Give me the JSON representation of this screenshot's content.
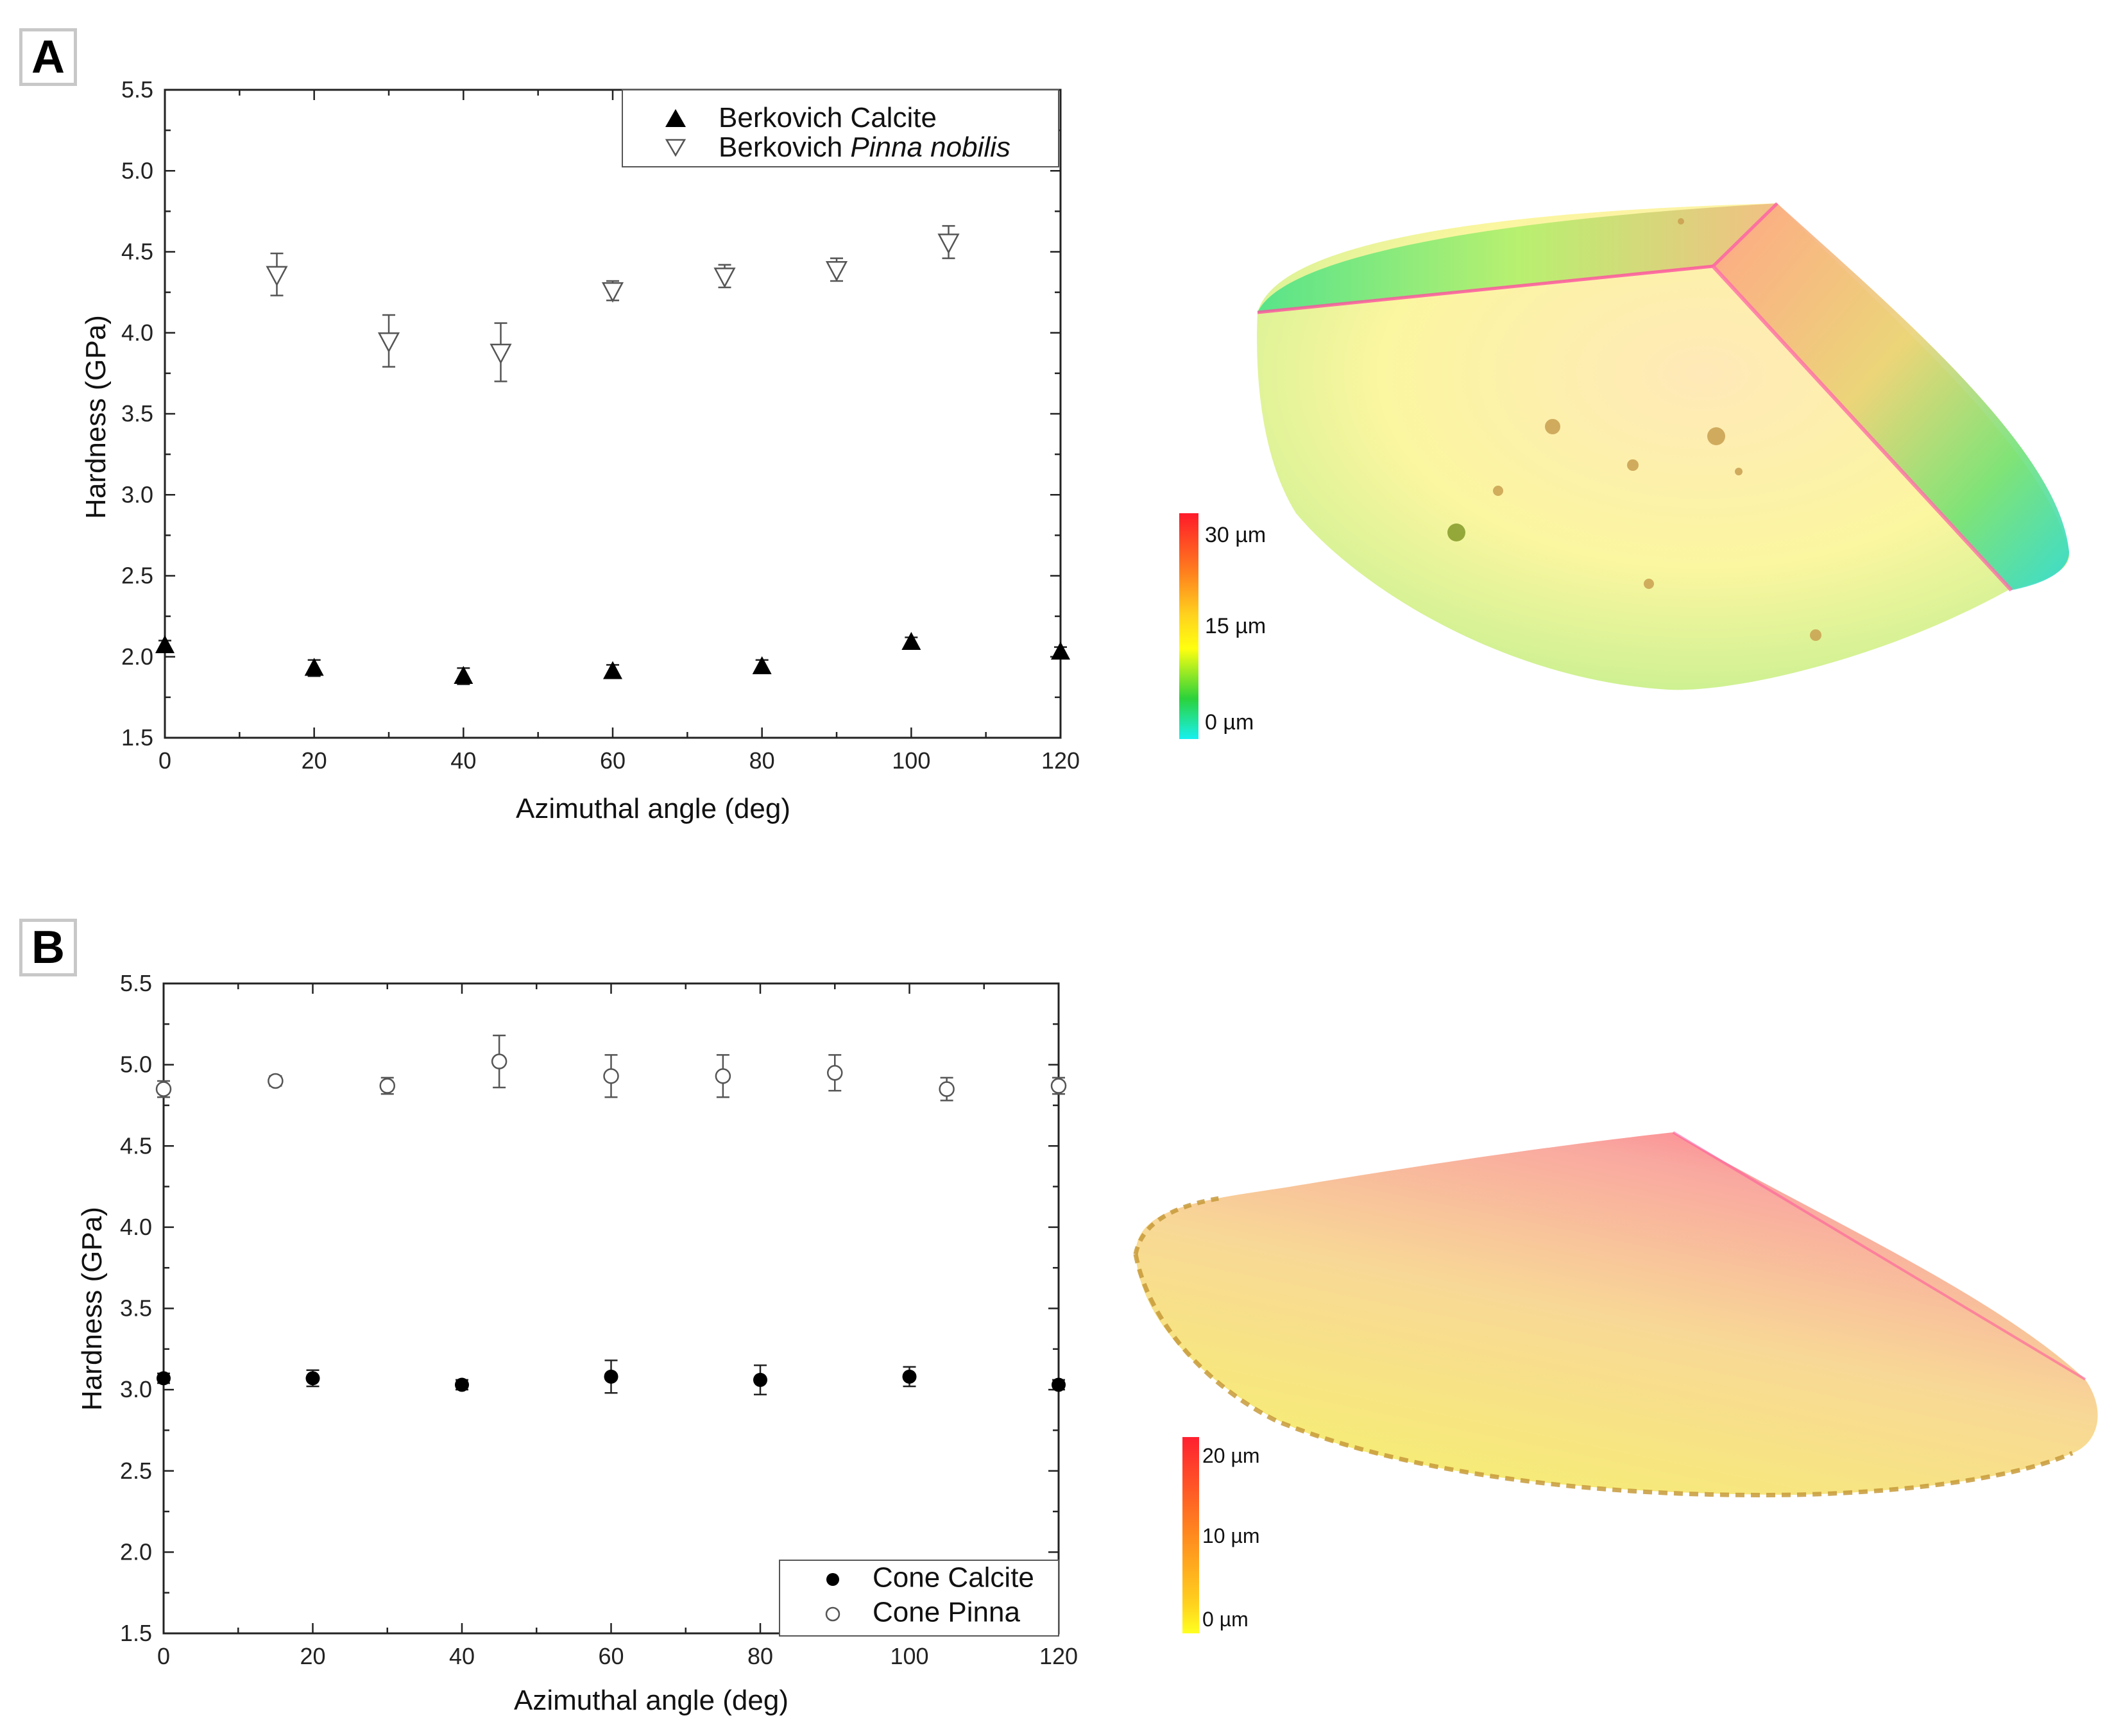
{
  "panels": {
    "a_label": "A",
    "b_label": "B"
  },
  "chart_data": [
    {
      "type": "scatter",
      "panel": "A",
      "xlabel": "Azimuthal angle (deg)",
      "ylabel": "Hardness (GPa)",
      "xlim": [
        0,
        120
      ],
      "ylim": [
        1.5,
        5.5
      ],
      "xticks": [
        "0",
        "20",
        "40",
        "60",
        "80",
        "100",
        "120"
      ],
      "yticks": [
        "1.5",
        "2.0",
        "2.5",
        "3.0",
        "3.5",
        "4.0",
        "4.5",
        "5.0",
        "5.5"
      ],
      "legend_position": "top-right",
      "series": [
        {
          "name": "Berkovich Calcite",
          "name_parts": [
            "Berkovich ",
            "Calcite"
          ],
          "marker": "triangle-up-filled",
          "points": [
            {
              "x": 0,
              "y": 2.07,
              "err": 0.03
            },
            {
              "x": 20,
              "y": 1.93,
              "err": 0.05
            },
            {
              "x": 40,
              "y": 1.88,
              "err": 0.05
            },
            {
              "x": 60,
              "y": 1.91,
              "err": 0.04
            },
            {
              "x": 80,
              "y": 1.94,
              "err": 0.04
            },
            {
              "x": 100,
              "y": 2.09,
              "err": 0.03
            },
            {
              "x": 120,
              "y": 2.03,
              "err": 0.03
            }
          ]
        },
        {
          "name": "Berkovich Pinna nobilis",
          "name_parts": [
            "Berkovich ",
            "Pinna nobilis"
          ],
          "marker": "triangle-down-open",
          "points": [
            {
              "x": 15,
              "y": 4.36,
              "err": 0.13
            },
            {
              "x": 30,
              "y": 3.95,
              "err": 0.16
            },
            {
              "x": 45,
              "y": 3.88,
              "err": 0.18
            },
            {
              "x": 60,
              "y": 4.26,
              "err": 0.06
            },
            {
              "x": 75,
              "y": 4.35,
              "err": 0.07
            },
            {
              "x": 90,
              "y": 4.39,
              "err": 0.07
            },
            {
              "x": 105,
              "y": 4.56,
              "err": 0.1
            }
          ]
        }
      ],
      "colorbar": {
        "labels": [
          "30 µm",
          "15 µm",
          "0 µm"
        ],
        "colors": [
          "#ff1a2a",
          "#ff7b1e",
          "#ffd21e",
          "#ffff10",
          "#2bd23a",
          "#18f0f0"
        ]
      }
    },
    {
      "type": "scatter",
      "panel": "B",
      "xlabel": "Azimuthal angle (deg)",
      "ylabel": "Hardness (GPa)",
      "xlim": [
        0,
        120
      ],
      "ylim": [
        1.5,
        5.5
      ],
      "xticks": [
        "0",
        "20",
        "40",
        "60",
        "80",
        "100",
        "120"
      ],
      "yticks": [
        "1.5",
        "2.0",
        "2.5",
        "3.0",
        "3.5",
        "4.0",
        "4.5",
        "5.0",
        "5.5"
      ],
      "legend_position": "bottom-right",
      "series": [
        {
          "name": "Cone Calcite",
          "marker": "circle-filled",
          "points": [
            {
              "x": 0,
              "y": 3.07,
              "err": 0.03
            },
            {
              "x": 20,
              "y": 3.07,
              "err": 0.05
            },
            {
              "x": 40,
              "y": 3.03,
              "err": 0.03
            },
            {
              "x": 60,
              "y": 3.08,
              "err": 0.1
            },
            {
              "x": 80,
              "y": 3.06,
              "err": 0.09
            },
            {
              "x": 100,
              "y": 3.08,
              "err": 0.06
            },
            {
              "x": 120,
              "y": 3.03,
              "err": 0.03
            }
          ]
        },
        {
          "name": "Cone Pinna",
          "marker": "circle-open",
          "points": [
            {
              "x": 0,
              "y": 4.85,
              "err": 0.05
            },
            {
              "x": 15,
              "y": 4.9,
              "err": 0.03
            },
            {
              "x": 30,
              "y": 4.87,
              "err": 0.05
            },
            {
              "x": 45,
              "y": 5.02,
              "err": 0.16
            },
            {
              "x": 60,
              "y": 4.93,
              "err": 0.13
            },
            {
              "x": 75,
              "y": 4.93,
              "err": 0.13
            },
            {
              "x": 90,
              "y": 4.95,
              "err": 0.11
            },
            {
              "x": 105,
              "y": 4.85,
              "err": 0.07
            },
            {
              "x": 120,
              "y": 4.87,
              "err": 0.05
            }
          ]
        }
      ],
      "colorbar": {
        "labels": [
          "20 µm",
          "10 µm",
          "0 µm"
        ],
        "colors": [
          "#ff2030",
          "#ff8a1e",
          "#ffd21e",
          "#ffff20"
        ]
      }
    }
  ]
}
